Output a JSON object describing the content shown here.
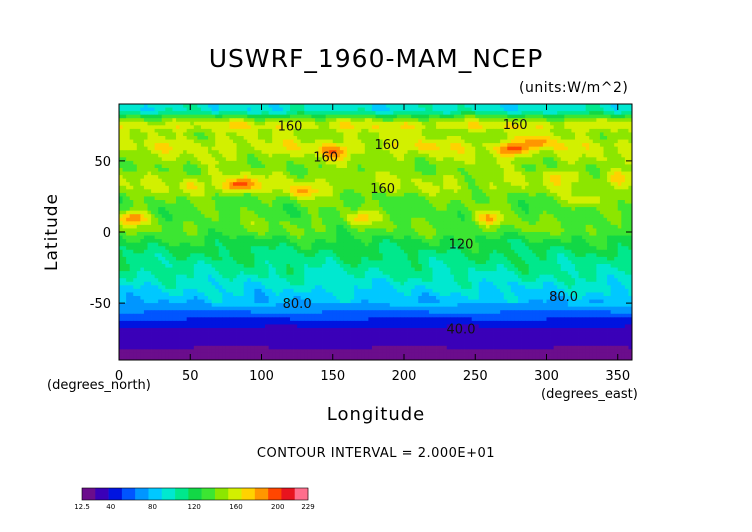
{
  "chart_data": {
    "type": "heatmap",
    "title": "USWRF_1960-MAM_NCEP",
    "units": "(units:W/m^2)",
    "xlabel": "Longitude",
    "ylabel": "Latitude",
    "x_unit_label": "(degrees_north)",
    "x_unit_label_right": "(degrees_east)",
    "xlim": [
      0,
      360
    ],
    "ylim": [
      -90,
      90
    ],
    "x_ticks": [
      "0",
      "50",
      "100",
      "150",
      "200",
      "250",
      "300",
      "350"
    ],
    "x_tick_values": [
      0,
      50,
      100,
      150,
      200,
      250,
      300,
      350
    ],
    "y_ticks": [
      "50",
      "0",
      "-50"
    ],
    "y_tick_values": [
      50,
      0,
      -50
    ],
    "contour_interval_text": "CONTOUR INTERVAL = 2.000E+01",
    "contour_labels": [
      {
        "text": "160",
        "lon": 120,
        "lat": 75
      },
      {
        "text": "160",
        "lon": 278,
        "lat": 76
      },
      {
        "text": "160",
        "lon": 188,
        "lat": 62
      },
      {
        "text": "160",
        "lon": 145,
        "lat": 53
      },
      {
        "text": "160",
        "lon": 185,
        "lat": 31
      },
      {
        "text": "120",
        "lon": 240,
        "lat": -8
      },
      {
        "text": "80.0",
        "lon": 125,
        "lat": -50
      },
      {
        "text": "80.0",
        "lon": 312,
        "lat": -45
      },
      {
        "text": "40.0",
        "lon": 240,
        "lat": -68
      }
    ],
    "latitude_bands": [
      {
        "lat": 85,
        "value": 95
      },
      {
        "lat": 80,
        "value": 140
      },
      {
        "lat": 75,
        "value": 165
      },
      {
        "lat": 70,
        "value": 150
      },
      {
        "lat": 65,
        "value": 152
      },
      {
        "lat": 60,
        "value": 160
      },
      {
        "lat": 55,
        "value": 152
      },
      {
        "lat": 50,
        "value": 148
      },
      {
        "lat": 45,
        "value": 142
      },
      {
        "lat": 40,
        "value": 148
      },
      {
        "lat": 35,
        "value": 152
      },
      {
        "lat": 30,
        "value": 150
      },
      {
        "lat": 25,
        "value": 140
      },
      {
        "lat": 20,
        "value": 138
      },
      {
        "lat": 15,
        "value": 135
      },
      {
        "lat": 10,
        "value": 137
      },
      {
        "lat": 5,
        "value": 140
      },
      {
        "lat": 0,
        "value": 136
      },
      {
        "lat": -5,
        "value": 126
      },
      {
        "lat": -10,
        "value": 120
      },
      {
        "lat": -15,
        "value": 114
      },
      {
        "lat": -20,
        "value": 110
      },
      {
        "lat": -25,
        "value": 106
      },
      {
        "lat": -30,
        "value": 102
      },
      {
        "lat": -35,
        "value": 96
      },
      {
        "lat": -40,
        "value": 90
      },
      {
        "lat": -45,
        "value": 84
      },
      {
        "lat": -50,
        "value": 78
      },
      {
        "lat": -55,
        "value": 66
      },
      {
        "lat": -60,
        "value": 52
      },
      {
        "lat": -65,
        "value": 44
      },
      {
        "lat": -70,
        "value": 30
      },
      {
        "lat": -75,
        "value": 34
      },
      {
        "lat": -80,
        "value": 30
      },
      {
        "lat": -85,
        "value": 14
      },
      {
        "lat": -90,
        "value": 13
      }
    ],
    "hotspots": [
      {
        "lon": 85,
        "lat": 33,
        "value": 210
      },
      {
        "lon": 275,
        "lat": 58,
        "value": 200
      },
      {
        "lon": 295,
        "lat": 63,
        "value": 185
      },
      {
        "lon": 130,
        "lat": 28,
        "value": 180
      },
      {
        "lon": 10,
        "lat": 10,
        "value": 185
      },
      {
        "lon": 260,
        "lat": 10,
        "value": 175
      },
      {
        "lon": 150,
        "lat": 56,
        "value": 185
      },
      {
        "lon": 220,
        "lat": 60,
        "value": 172
      },
      {
        "lon": 350,
        "lat": 38,
        "value": 170
      },
      {
        "lon": 170,
        "lat": 10,
        "value": 170
      },
      {
        "lon": 50,
        "lat": 32,
        "value": 170
      },
      {
        "lon": 310,
        "lat": 40,
        "value": 165
      },
      {
        "lon": 325,
        "lat": 22,
        "value": 162
      }
    ],
    "colorbar": {
      "min_label": "12.5",
      "max_label": "229",
      "tick_labels": [
        "12.5",
        "40",
        "80",
        "120",
        "160",
        "200",
        "229"
      ],
      "tick_values": [
        12.5,
        40,
        80,
        120,
        160,
        200,
        229
      ],
      "colors": [
        "#6b0d8c",
        "#3a00b8",
        "#0014e0",
        "#0055ff",
        "#0096ff",
        "#00c8ff",
        "#00e8d0",
        "#00e88c",
        "#12d846",
        "#3ce632",
        "#8ce600",
        "#d2f000",
        "#ffd200",
        "#ff9600",
        "#ff4600",
        "#e8141e",
        "#ff6e8c"
      ]
    }
  }
}
